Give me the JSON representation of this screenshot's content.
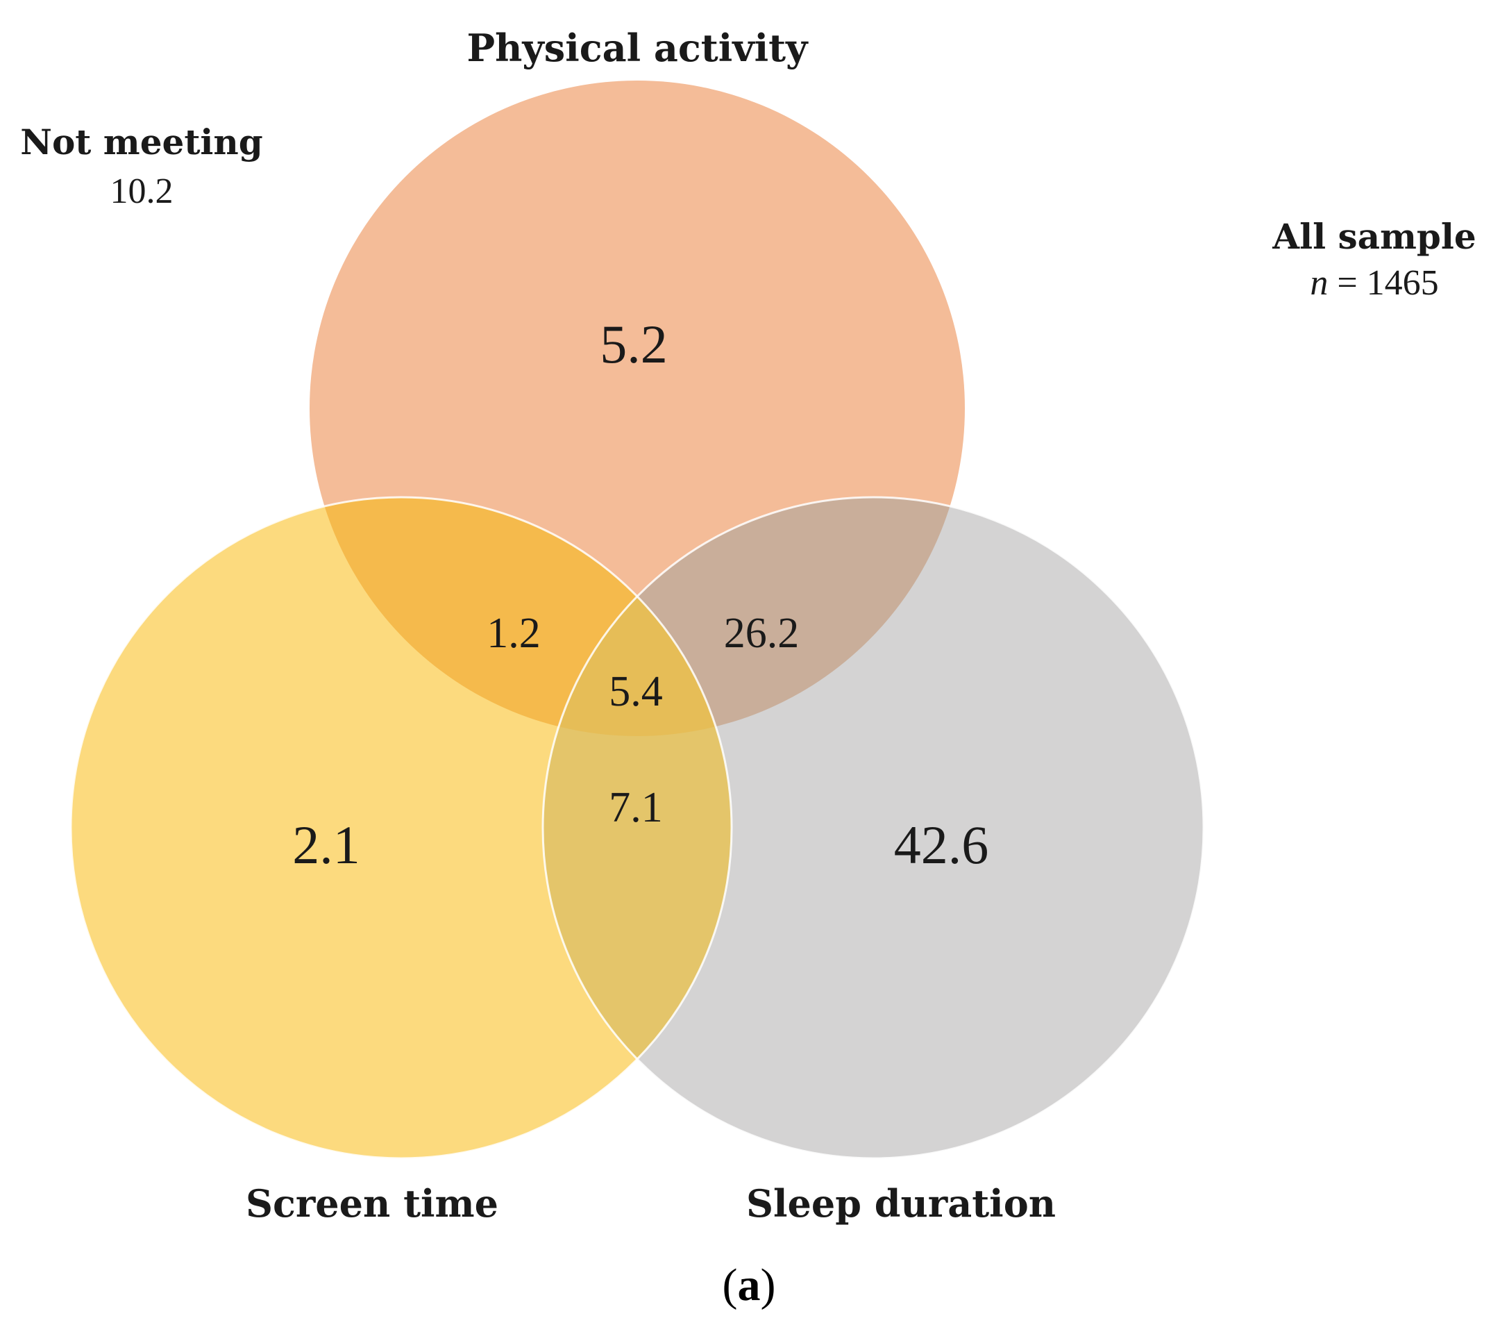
{
  "sets": {
    "physical_activity": {
      "label": "Physical activity",
      "color": "#F4BC98"
    },
    "screen_time": {
      "label": "Screen time",
      "color": "#FCDA7E"
    },
    "sleep_duration": {
      "label": "Sleep duration",
      "color": "#D4D3D3"
    }
  },
  "regions": {
    "pa_only": "5.2",
    "st_only": "2.1",
    "sd_only": "42.6",
    "pa_st": "1.2",
    "pa_sd": "26.2",
    "st_sd": "7.1",
    "all_three": "5.4"
  },
  "not_meeting": {
    "label": "Not meeting",
    "value": "10.2"
  },
  "sample": {
    "label": "All sample",
    "n_symbol": "n",
    "n_value": "= 1465"
  },
  "caption": {
    "open": "(",
    "letter": "a",
    "close": ")"
  }
}
